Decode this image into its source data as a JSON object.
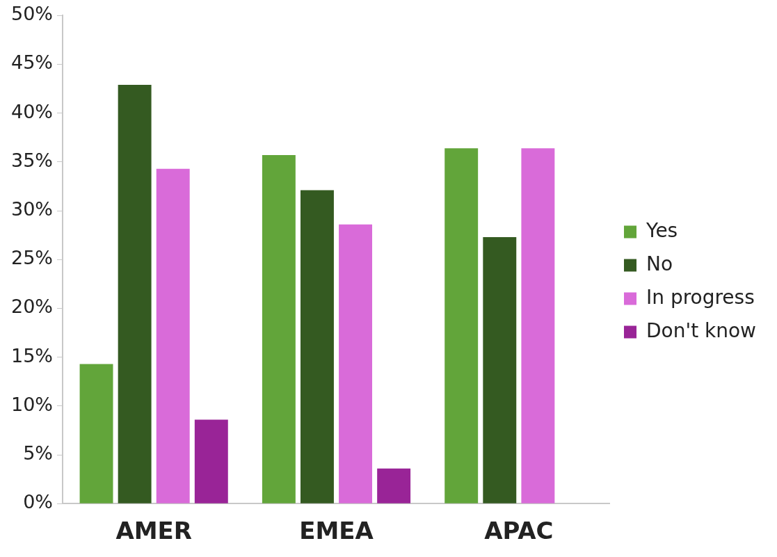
{
  "chart_data": {
    "type": "bar",
    "categories": [
      "AMER",
      "EMEA",
      "APAC"
    ],
    "series": [
      {
        "name": "Yes",
        "color": "#62a53a",
        "values": [
          14.3,
          35.7,
          36.4
        ]
      },
      {
        "name": "No",
        "color": "#345a21",
        "values": [
          42.9,
          32.1,
          27.3
        ]
      },
      {
        "name": "In progress",
        "color": "#d96bd9",
        "values": [
          34.3,
          28.6,
          36.4
        ]
      },
      {
        "name": "Don't know",
        "color": "#992497",
        "values": [
          8.6,
          3.6,
          0
        ]
      }
    ],
    "ylim": [
      0,
      50
    ],
    "yticks": [
      {
        "value": 0,
        "label": "0%"
      },
      {
        "value": 5,
        "label": "5%"
      },
      {
        "value": 10,
        "label": "10%"
      },
      {
        "value": 15,
        "label": "15%"
      },
      {
        "value": 20,
        "label": "20%"
      },
      {
        "value": 25,
        "label": "25%"
      },
      {
        "value": 30,
        "label": "30%"
      },
      {
        "value": 35,
        "label": "35%"
      },
      {
        "value": 40,
        "label": "40%"
      },
      {
        "value": 45,
        "label": "45%"
      },
      {
        "value": 50,
        "label": "50%"
      }
    ],
    "grid": false,
    "legend": "right"
  }
}
